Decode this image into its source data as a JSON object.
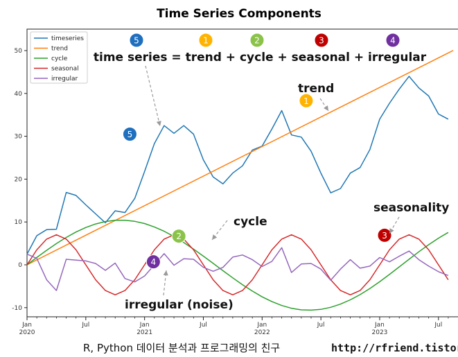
{
  "chart_data": {
    "type": "line",
    "title": "Time Series Components",
    "xlabel": "",
    "ylabel": "",
    "xlim": [
      0,
      43
    ],
    "ylim": [
      -12,
      55
    ],
    "grid": false,
    "legend_placement": "top-left",
    "x": [
      0,
      1,
      2,
      3,
      4,
      5,
      6,
      7,
      8,
      9,
      10,
      11,
      12,
      13,
      14,
      15,
      16,
      17,
      18,
      19,
      20,
      21,
      22,
      23,
      24,
      25,
      26,
      27,
      28,
      29,
      30,
      31,
      32,
      33,
      34,
      35,
      36,
      37,
      38,
      39,
      40,
      41,
      42,
      43
    ],
    "x_tick_positions": [
      0,
      6,
      12,
      18,
      24,
      30,
      36,
      42
    ],
    "x_tick_labels": [
      [
        "Jan",
        "2020"
      ],
      [
        "Jul",
        ""
      ],
      [
        "Jan",
        "2021"
      ],
      [
        "Jul",
        ""
      ],
      [
        "Jan",
        "2022"
      ],
      [
        "Jul",
        ""
      ],
      [
        "Jan",
        "2023"
      ],
      [
        "Jul",
        ""
      ]
    ],
    "y_ticks": [
      -10,
      0,
      10,
      20,
      30,
      40,
      50
    ],
    "series": [
      {
        "name": "timeseries",
        "color": "#1f77b4",
        "values": [
          2.5,
          6.8,
          8.2,
          8.3,
          16.9,
          16.2,
          14,
          11.9,
          9.8,
          12.6,
          12.2,
          15.5,
          21.8,
          28.3,
          32.5,
          30.7,
          32.5,
          30.5,
          24.5,
          20.5,
          18.9,
          21.4,
          23.1,
          26.8,
          27.7,
          31.7,
          36,
          30.3,
          29.8,
          26.5,
          21.4,
          16.8,
          17.8,
          21.4,
          22.7,
          26.9,
          34,
          37.7,
          41,
          44,
          41.3,
          39.4,
          35.2,
          34
        ]
      },
      {
        "name": "trend",
        "color": "#ff7f0e",
        "values": [
          0,
          1.15,
          2.3,
          3.45,
          4.6,
          5.75,
          6.9,
          8.05,
          9.2,
          10.35,
          11.5,
          12.65,
          13.8,
          14.95,
          16.1,
          17.25,
          18.4,
          19.55,
          20.7,
          21.85,
          23,
          24.15,
          25.3,
          26.45,
          27.6,
          28.75,
          29.9,
          31.05,
          32.2,
          33.35,
          34.5,
          35.65,
          36.8,
          37.95,
          39.1,
          40.25,
          41.4,
          42.55,
          43.7,
          44.85,
          46,
          47.15,
          48.3,
          49.45
        ]
      },
      {
        "name": "cycle",
        "color": "#2ca02c",
        "values": [
          0,
          1.71,
          3.38,
          4.95,
          6.39,
          7.66,
          8.71,
          9.53,
          10.1,
          10.39,
          10.41,
          10.15,
          9.62,
          8.84,
          7.83,
          6.6,
          5.2,
          3.66,
          2.03,
          0.34,
          -1.37,
          -3.05,
          -4.65,
          -6.14,
          -7.47,
          -8.6,
          -9.5,
          -10.14,
          -10.51,
          -10.59,
          -10.4,
          -9.92,
          -9.17,
          -8.17,
          -6.95,
          -5.53,
          -3.95,
          -2.25,
          -0.48,
          1.3,
          3.05,
          4.7,
          6.22,
          7.55
        ]
      },
      {
        "name": "seasonal",
        "color": "#d62728",
        "values": [
          0,
          3.5,
          6,
          7,
          6,
          3.5,
          0,
          -3.5,
          -6,
          -7,
          -6,
          -3.5,
          0,
          3.5,
          6,
          7,
          6,
          3.5,
          0,
          -3.5,
          -6,
          -7,
          -6,
          -3.5,
          0,
          3.5,
          6,
          7,
          6,
          3.5,
          0,
          -3.5,
          -6,
          -7,
          -6,
          -3.5,
          0,
          3.5,
          6,
          7,
          6,
          3.5,
          0,
          -3.5
        ]
      },
      {
        "name": "irregular",
        "color": "#9467bd",
        "values": [
          2.5,
          1.5,
          -3.5,
          -6,
          1.3,
          1.1,
          0.9,
          0.3,
          -1.3,
          0.4,
          -3.2,
          -4,
          -2.6,
          0,
          2.6,
          -0.1,
          1.4,
          1.3,
          -0.6,
          -1.5,
          -0.6,
          1.8,
          2.3,
          1.2,
          -0.4,
          0.8,
          4,
          -1.8,
          0.2,
          0.3,
          -1,
          -3.6,
          -1,
          1.2,
          -0.8,
          -0.3,
          1.7,
          0.7,
          2,
          3.2,
          1.2,
          -0.3,
          -1.6,
          -2.5
        ]
      }
    ],
    "annotations": [
      {
        "text": "time series = trend + cycle + seasonal + irregular"
      },
      {
        "text": "trend",
        "x": 28.5,
        "y": 38.3,
        "badge": "1"
      },
      {
        "text": "cycle",
        "x": 15.5,
        "y": 6.7,
        "badge": "2"
      },
      {
        "text": "seasonality",
        "x": 36.5,
        "y": 6.9,
        "badge": "3"
      },
      {
        "text": "irregular (noise)",
        "x": 12.9,
        "y": 0.7,
        "badge": "4"
      },
      {
        "text": "",
        "x": 10.5,
        "y": 30.5,
        "badge": "5"
      }
    ],
    "formula_badges": [
      {
        "num": "5",
        "color": "#1f6fbf"
      },
      {
        "num": "1",
        "color": "#ffb300"
      },
      {
        "num": "2",
        "color": "#8bc34a"
      },
      {
        "num": "3",
        "color": "#c00000"
      },
      {
        "num": "4",
        "color": "#7030a0"
      }
    ]
  },
  "footer": {
    "text": "R, Python 데이터 분석과 프로그래밍의 친구",
    "url": "http://rfriend.tistory.com"
  }
}
